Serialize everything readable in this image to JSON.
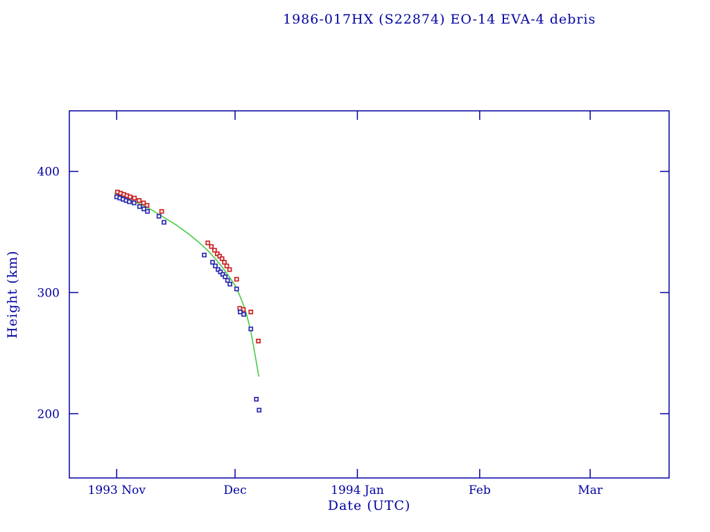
{
  "chart_data": {
    "type": "scatter",
    "title": "1986-017HX (S22874) EO-14 EVA-4 debris",
    "xlabel": "Date (UTC)",
    "ylabel": "Height (km)",
    "x_unit": "days since 1993-11-01",
    "xlim": [
      -12,
      140
    ],
    "ylim": [
      147,
      450
    ],
    "grid": false,
    "legend": "none",
    "x_ticks": [
      {
        "label": "1993 Nov",
        "day": 0
      },
      {
        "label": "Dec",
        "day": 30
      },
      {
        "label": "1994 Jan",
        "day": 61
      },
      {
        "label": "Feb",
        "day": 92
      },
      {
        "label": "Mar",
        "day": 120
      }
    ],
    "y_ticks": [
      {
        "label": "200",
        "value": 200
      },
      {
        "label": "300",
        "value": 300
      },
      {
        "label": "400",
        "value": 400
      }
    ],
    "colors": {
      "text": "#0000a0",
      "frame": "#0000a0",
      "apogee": "#cc2020",
      "perigee": "#2828b0",
      "fit": "#44cc44"
    },
    "series": [
      {
        "name": "apogee-height",
        "marker": "open-square",
        "color_key": "apogee",
        "points": [
          [
            0.2,
            383
          ],
          [
            1.0,
            382
          ],
          [
            1.8,
            381
          ],
          [
            2.6,
            380
          ],
          [
            3.4,
            379
          ],
          [
            4.5,
            378
          ],
          [
            5.7,
            376
          ],
          [
            6.8,
            374
          ],
          [
            7.7,
            372
          ],
          [
            11.4,
            367
          ],
          [
            23.1,
            341
          ],
          [
            24.0,
            338
          ],
          [
            24.8,
            335
          ],
          [
            25.5,
            332
          ],
          [
            26.1,
            330
          ],
          [
            26.7,
            328
          ],
          [
            27.3,
            325
          ],
          [
            27.9,
            322
          ],
          [
            28.6,
            319
          ],
          [
            30.4,
            311
          ],
          [
            31.2,
            287
          ],
          [
            32.1,
            286
          ],
          [
            34.0,
            284
          ],
          [
            35.9,
            260
          ]
        ]
      },
      {
        "name": "perigee-height",
        "marker": "open-square",
        "color_key": "perigee",
        "points": [
          [
            0.0,
            379
          ],
          [
            0.8,
            378
          ],
          [
            1.6,
            377
          ],
          [
            2.4,
            376
          ],
          [
            3.2,
            375
          ],
          [
            4.4,
            374
          ],
          [
            5.8,
            371
          ],
          [
            6.9,
            369
          ],
          [
            7.8,
            367
          ],
          [
            10.7,
            363
          ],
          [
            12.0,
            358
          ],
          [
            22.2,
            331
          ],
          [
            24.3,
            325
          ],
          [
            25.0,
            322
          ],
          [
            25.7,
            319
          ],
          [
            26.3,
            317
          ],
          [
            26.9,
            315
          ],
          [
            27.5,
            313
          ],
          [
            28.1,
            310
          ],
          [
            28.7,
            307
          ],
          [
            30.4,
            303
          ],
          [
            31.3,
            284
          ],
          [
            32.2,
            282
          ],
          [
            34.0,
            270
          ],
          [
            35.4,
            212
          ],
          [
            36.1,
            203
          ]
        ]
      }
    ],
    "fit_curve": {
      "name": "decay-fit",
      "color_key": "fit",
      "points": [
        [
          -0.5,
          382
        ],
        [
          3,
          377
        ],
        [
          6,
          373
        ],
        [
          9,
          368
        ],
        [
          12,
          362
        ],
        [
          15,
          356
        ],
        [
          18,
          349
        ],
        [
          21,
          341
        ],
        [
          23,
          335
        ],
        [
          25,
          328
        ],
        [
          27,
          320
        ],
        [
          28.5,
          313
        ],
        [
          30,
          306
        ],
        [
          31,
          299
        ],
        [
          32,
          291
        ],
        [
          33,
          281
        ],
        [
          34,
          268
        ],
        [
          35,
          250
        ],
        [
          36,
          231
        ]
      ]
    }
  }
}
